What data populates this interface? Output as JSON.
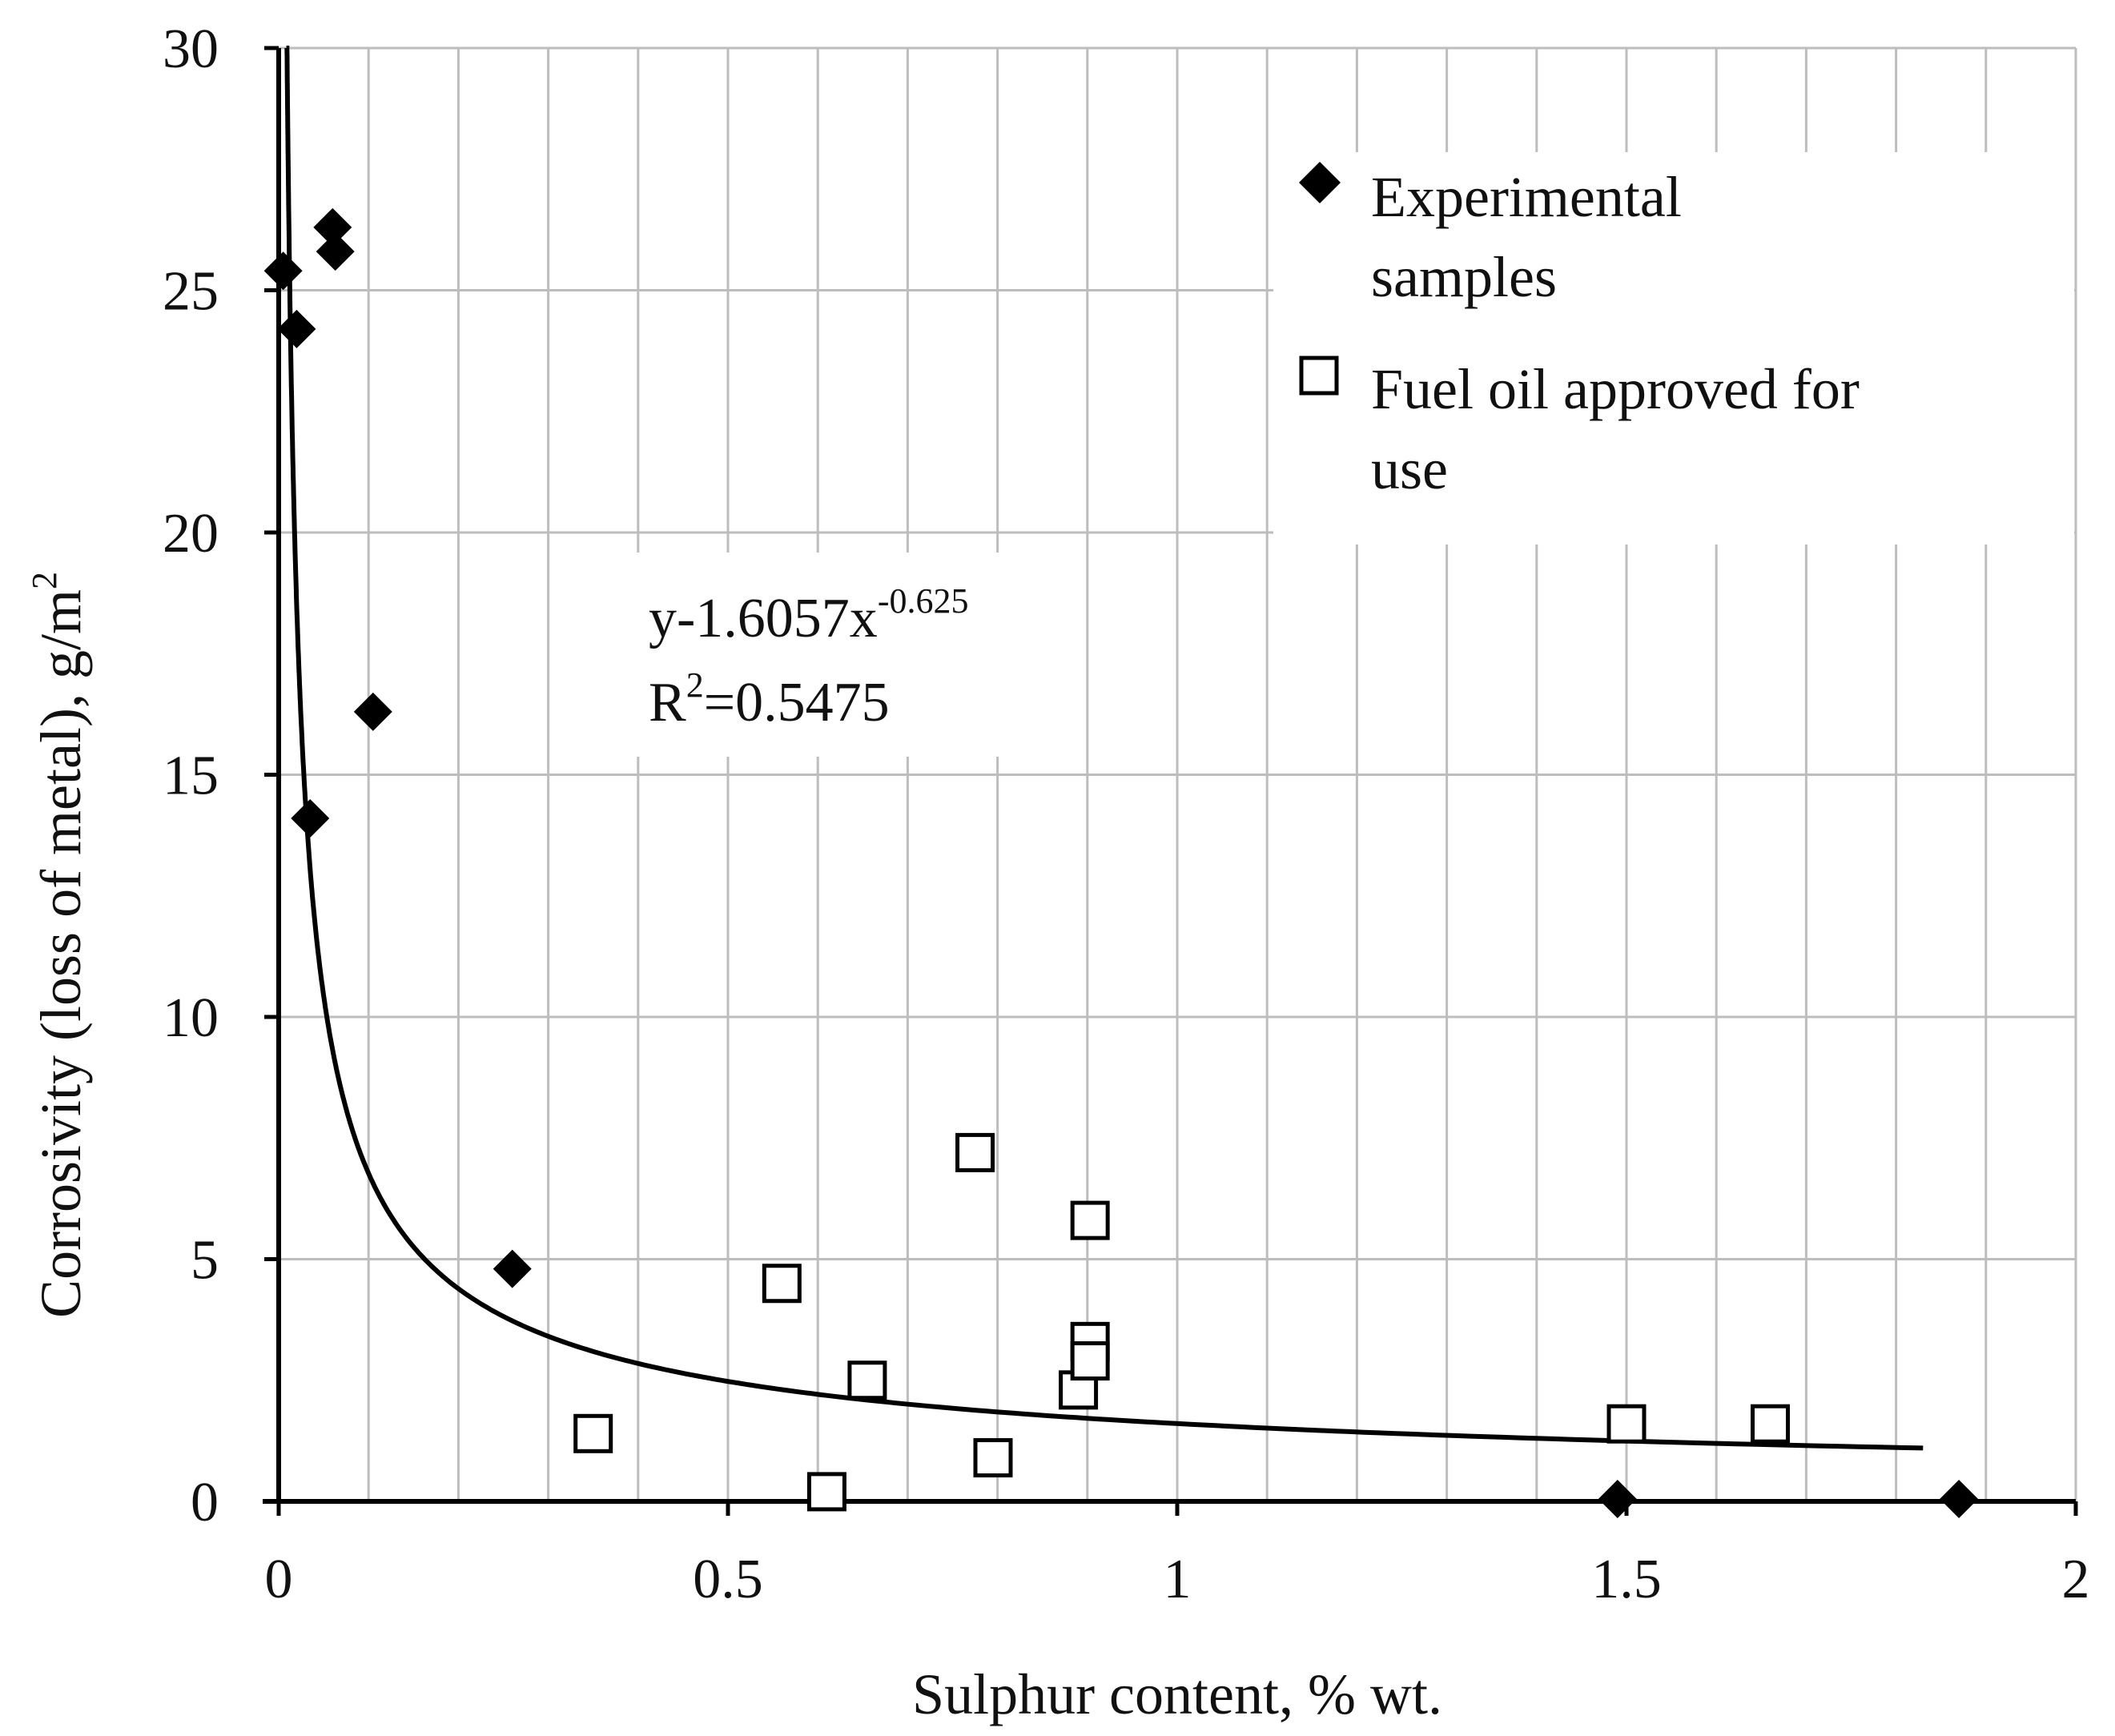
{
  "chart_data": {
    "type": "scatter",
    "title": "",
    "xlabel": "Sulphur content, % wt.",
    "ylabel": "Corrosivity (loss of metal), g/m",
    "ylabel_sup": "2",
    "xlim": [
      0,
      2
    ],
    "ylim": [
      0,
      30
    ],
    "x_ticks": [
      0,
      0.5,
      1,
      1.5,
      2
    ],
    "x_tick_labels": [
      "0",
      "0.5",
      "1",
      "1.5",
      "2"
    ],
    "y_ticks": [
      0,
      5,
      10,
      15,
      20,
      25,
      30
    ],
    "y_tick_labels": [
      "0",
      "5",
      "10",
      "15",
      "20",
      "25",
      "30"
    ],
    "x_minor_step": 0.1,
    "y_major_step": 5,
    "grid": true,
    "legend_position": "top-right",
    "series": [
      {
        "name": "Experimental samples",
        "name_lines": [
          "Experimental",
          "samples"
        ],
        "marker": "diamond",
        "color": "#000000",
        "points": [
          {
            "x": 0.005,
            "y": 25.4
          },
          {
            "x": 0.02,
            "y": 24.2
          },
          {
            "x": 0.06,
            "y": 26.3
          },
          {
            "x": 0.063,
            "y": 25.8
          },
          {
            "x": 0.105,
            "y": 16.3
          },
          {
            "x": 0.035,
            "y": 14.1
          },
          {
            "x": 0.26,
            "y": 4.8
          },
          {
            "x": 1.49,
            "y": 0.05
          },
          {
            "x": 1.87,
            "y": 0.05
          }
        ]
      },
      {
        "name": "Fuel oil approved for use",
        "name_lines": [
          "Fuel oil approved for",
          "use"
        ],
        "marker": "square-open",
        "color": "#000000",
        "points": [
          {
            "x": 0.35,
            "y": 1.4
          },
          {
            "x": 0.56,
            "y": 4.5
          },
          {
            "x": 0.61,
            "y": 0.2
          },
          {
            "x": 0.655,
            "y": 2.5
          },
          {
            "x": 0.775,
            "y": 7.2
          },
          {
            "x": 0.795,
            "y": 0.9
          },
          {
            "x": 0.89,
            "y": 2.3
          },
          {
            "x": 0.903,
            "y": 5.8
          },
          {
            "x": 0.903,
            "y": 3.3
          },
          {
            "x": 0.903,
            "y": 2.9
          },
          {
            "x": 1.5,
            "y": 1.6
          },
          {
            "x": 1.66,
            "y": 1.6
          }
        ]
      }
    ],
    "trendline": {
      "type": "power",
      "a": 1.6057,
      "b": -0.625,
      "x_range": [
        0.0086,
        1.83
      ],
      "equation_main": "y-1.6057x",
      "equation_exp": "-0.625",
      "r2_prefix": "R",
      "r2_sup": "2",
      "r2_rest": "=0.5475"
    }
  }
}
